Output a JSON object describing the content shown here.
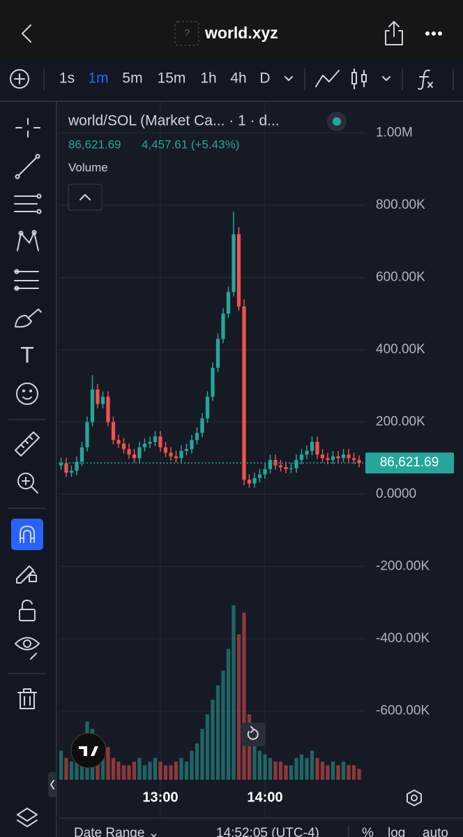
{
  "header": {
    "favicon": "?",
    "title": "world.xyz"
  },
  "toolbar": {
    "intervals": [
      "1s",
      "1m",
      "5m",
      "15m",
      "1h",
      "4h",
      "D"
    ],
    "active_index": 1
  },
  "chart_data": {
    "type": "candlestick",
    "title": "world/SOL (Market Ca... · 1 · d...",
    "legend_values": [
      "86,621.69",
      "4,457.61 (+5.43%)"
    ],
    "volume_label": "Volume",
    "up_color": "#26a69a",
    "down_color": "#ef5350",
    "x": [
      723,
      726,
      729,
      732,
      735,
      738,
      741,
      744,
      747,
      750,
      753,
      756,
      759,
      762,
      765,
      768,
      771,
      774,
      777,
      780,
      783,
      786,
      789,
      792,
      795,
      798,
      801,
      804,
      807,
      810,
      813,
      816,
      819,
      822,
      825,
      828,
      831,
      834,
      837,
      840,
      843,
      846,
      849,
      852,
      855,
      858,
      861,
      864,
      867,
      870,
      873,
      876,
      879,
      882,
      885,
      888,
      891,
      894
    ],
    "open": [
      80000,
      86000,
      60000,
      65000,
      90000,
      130000,
      200000,
      290000,
      250000,
      270000,
      200000,
      150000,
      140000,
      125000,
      110000,
      100000,
      130000,
      140000,
      145000,
      160000,
      130000,
      115000,
      105000,
      100000,
      120000,
      125000,
      150000,
      170000,
      210000,
      270000,
      350000,
      430000,
      500000,
      560000,
      720000,
      520000,
      40000,
      30000,
      45000,
      55000,
      70000,
      95000,
      80000,
      75000,
      70000,
      72000,
      95000,
      110000,
      120000,
      145000,
      110000,
      100000,
      95000,
      105000,
      100000,
      110000,
      100000,
      95000
    ],
    "high": [
      101000,
      101000,
      80000,
      105000,
      145000,
      215000,
      330000,
      305000,
      285000,
      285000,
      215000,
      165000,
      155000,
      140000,
      125000,
      145000,
      155000,
      160000,
      175000,
      175000,
      145000,
      130000,
      120000,
      135000,
      140000,
      165000,
      185000,
      225000,
      285000,
      365000,
      445000,
      515000,
      575000,
      782000,
      740000,
      540000,
      55000,
      60000,
      70000,
      85000,
      110000,
      110000,
      95000,
      90000,
      87000,
      110000,
      125000,
      135000,
      160000,
      160000,
      125000,
      115000,
      120000,
      120000,
      125000,
      125000,
      115000,
      108000
    ],
    "low": [
      68000,
      48000,
      48000,
      53000,
      78000,
      118000,
      188000,
      238000,
      238000,
      188000,
      138000,
      128000,
      113000,
      98000,
      88000,
      88000,
      118000,
      128000,
      133000,
      118000,
      103000,
      93000,
      88000,
      88000,
      108000,
      113000,
      138000,
      158000,
      198000,
      258000,
      338000,
      418000,
      488000,
      548000,
      508000,
      25000,
      18000,
      18000,
      33000,
      43000,
      58000,
      68000,
      63000,
      58000,
      58000,
      60000,
      83000,
      98000,
      108000,
      98000,
      88000,
      83000,
      83000,
      88000,
      88000,
      88000,
      83000,
      75000
    ],
    "close": [
      86000,
      60000,
      65000,
      90000,
      130000,
      200000,
      290000,
      250000,
      270000,
      200000,
      150000,
      140000,
      125000,
      110000,
      100000,
      130000,
      140000,
      145000,
      160000,
      130000,
      115000,
      105000,
      100000,
      120000,
      125000,
      150000,
      170000,
      210000,
      270000,
      350000,
      430000,
      500000,
      560000,
      720000,
      520000,
      40000,
      30000,
      45000,
      55000,
      70000,
      95000,
      80000,
      75000,
      70000,
      72000,
      95000,
      110000,
      120000,
      145000,
      110000,
      100000,
      95000,
      105000,
      100000,
      110000,
      100000,
      95000,
      86621.69
    ],
    "volume": [
      40,
      30,
      25,
      50,
      60,
      80,
      70,
      40,
      50,
      45,
      30,
      25,
      20,
      20,
      25,
      30,
      20,
      25,
      30,
      25,
      20,
      20,
      25,
      30,
      25,
      40,
      50,
      70,
      90,
      110,
      130,
      150,
      180,
      240,
      200,
      230,
      90,
      60,
      40,
      35,
      30,
      25,
      25,
      20,
      20,
      30,
      35,
      30,
      40,
      30,
      25,
      20,
      25,
      20,
      25,
      20,
      20,
      15
    ],
    "last_price": {
      "value": 86621.69,
      "label": "86,621.69"
    },
    "xlim": [
      721.6,
      897.6
    ],
    "xticks": [
      {
        "value": 780,
        "label": "13:00"
      },
      {
        "value": 840,
        "label": "14:00"
      }
    ],
    "ylim": [
      -796000,
      1088000
    ],
    "yticks": [
      {
        "value": 1000000,
        "label": "1.00M"
      },
      {
        "value": 800000,
        "label": "800.00K"
      },
      {
        "value": 600000,
        "label": "600.00K"
      },
      {
        "value": 400000,
        "label": "400.00K"
      },
      {
        "value": 200000,
        "label": "200.00K"
      },
      {
        "value": 0,
        "label": "0.0000"
      },
      {
        "value": -200000,
        "label": "-200.00K"
      },
      {
        "value": -400000,
        "label": "-400.00K"
      },
      {
        "value": -600000,
        "label": "-600.00K"
      }
    ],
    "grid": true
  },
  "footer": {
    "date_range": "Date Range ⌄",
    "time": "14:52:05 (UTC-4)",
    "options": [
      "%",
      "log",
      "auto"
    ]
  }
}
